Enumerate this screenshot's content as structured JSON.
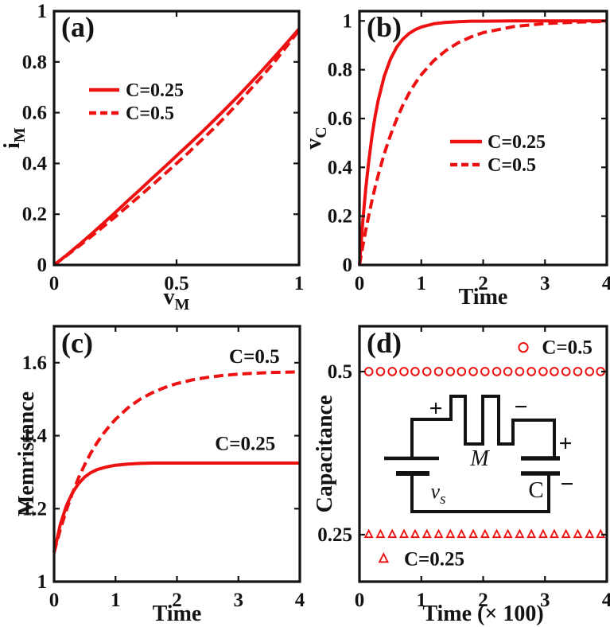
{
  "figure": {
    "background": "#ffffff",
    "curve_color": "#ee1111",
    "ink_color": "#131313"
  },
  "chart_data": [
    {
      "id": "a",
      "type": "line",
      "panel_label": "(a)",
      "xlabel": {
        "text": "v",
        "sub": "M"
      },
      "ylabel": {
        "text": "i",
        "sub": "M"
      },
      "xlim": [
        0,
        1
      ],
      "ylim": [
        0,
        1
      ],
      "grid": false,
      "xticks": [
        {
          "v": 0,
          "label": "0"
        },
        {
          "v": 0.5,
          "label": "0.5"
        },
        {
          "v": 1,
          "label": "1"
        }
      ],
      "yticks": [
        {
          "v": 0,
          "label": "0"
        },
        {
          "v": 0.2,
          "label": "0.2"
        },
        {
          "v": 0.4,
          "label": "0.4"
        },
        {
          "v": 0.6,
          "label": "0.6"
        },
        {
          "v": 0.8,
          "label": "0.8"
        },
        {
          "v": 1,
          "label": "1"
        }
      ],
      "legend": {
        "position": "upper-left-inside",
        "items": [
          {
            "label": "C=0.25",
            "style": "solid"
          },
          {
            "label": "C=0.5",
            "style": "dashed"
          }
        ]
      },
      "series": [
        {
          "name": "C=0.25",
          "style": "solid",
          "x": [
            0,
            0.05,
            0.1,
            0.15,
            0.2,
            0.25,
            0.3,
            0.35,
            0.4,
            0.45,
            0.5,
            0.55,
            0.6,
            0.65,
            0.7,
            0.75,
            0.8,
            0.85,
            0.9,
            0.95,
            1
          ],
          "y": [
            0,
            0.038,
            0.078,
            0.12,
            0.163,
            0.207,
            0.252,
            0.296,
            0.341,
            0.385,
            0.43,
            0.475,
            0.52,
            0.567,
            0.615,
            0.664,
            0.715,
            0.767,
            0.82,
            0.875,
            0.93
          ]
        },
        {
          "name": "C=0.5",
          "style": "dashed",
          "x": [
            0,
            0.05,
            0.1,
            0.15,
            0.2,
            0.25,
            0.3,
            0.35,
            0.4,
            0.45,
            0.5,
            0.55,
            0.6,
            0.65,
            0.7,
            0.75,
            0.8,
            0.85,
            0.9,
            0.95,
            1
          ],
          "y": [
            0,
            0.036,
            0.073,
            0.111,
            0.15,
            0.19,
            0.231,
            0.272,
            0.314,
            0.357,
            0.4,
            0.444,
            0.49,
            0.536,
            0.585,
            0.636,
            0.69,
            0.744,
            0.8,
            0.862,
            0.925
          ]
        }
      ]
    },
    {
      "id": "b",
      "type": "line",
      "panel_label": "(b)",
      "xlabel": {
        "text": "Time"
      },
      "ylabel": {
        "text": "v",
        "sub": "C"
      },
      "xlim": [
        0,
        4
      ],
      "ylim": [
        0,
        1.04
      ],
      "grid": false,
      "xticks": [
        {
          "v": 0,
          "label": "0"
        },
        {
          "v": 1,
          "label": "1"
        },
        {
          "v": 2,
          "label": "2"
        },
        {
          "v": 3,
          "label": "3"
        },
        {
          "v": 4,
          "label": "4"
        }
      ],
      "yticks": [
        {
          "v": 0,
          "label": "0"
        },
        {
          "v": 0.2,
          "label": "0.2"
        },
        {
          "v": 0.4,
          "label": "0.4"
        },
        {
          "v": 0.6,
          "label": "0.6"
        },
        {
          "v": 0.8,
          "label": "0.8"
        },
        {
          "v": 1,
          "label": "1"
        }
      ],
      "legend": {
        "position": "middle-right-inside",
        "items": [
          {
            "label": "C=0.25",
            "style": "solid"
          },
          {
            "label": "C=0.5",
            "style": "dashed"
          }
        ]
      },
      "series": [
        {
          "name": "C=0.25",
          "style": "solid",
          "x": [
            0,
            0.05,
            0.1,
            0.15,
            0.2,
            0.25,
            0.3,
            0.4,
            0.5,
            0.6,
            0.7,
            0.8,
            0.9,
            1,
            1.2,
            1.4,
            1.6,
            1.8,
            2,
            2.5,
            3,
            3.5,
            4
          ],
          "y": [
            0,
            0.169,
            0.31,
            0.426,
            0.523,
            0.604,
            0.671,
            0.773,
            0.843,
            0.892,
            0.925,
            0.948,
            0.964,
            0.975,
            0.988,
            0.994,
            0.997,
            0.999,
            0.999,
            1,
            1,
            1,
            1
          ]
        },
        {
          "name": "C=0.5",
          "style": "dashed",
          "x": [
            0,
            0.05,
            0.1,
            0.15,
            0.2,
            0.25,
            0.3,
            0.4,
            0.5,
            0.6,
            0.7,
            0.8,
            0.9,
            1,
            1.2,
            1.4,
            1.6,
            1.8,
            2,
            2.5,
            3,
            3.5,
            4
          ],
          "y": [
            0,
            0.073,
            0.141,
            0.203,
            0.261,
            0.315,
            0.365,
            0.455,
            0.531,
            0.597,
            0.654,
            0.703,
            0.744,
            0.78,
            0.837,
            0.879,
            0.911,
            0.934,
            0.952,
            0.977,
            0.989,
            0.995,
            0.998
          ]
        }
      ]
    },
    {
      "id": "c",
      "type": "line",
      "panel_label": "(c)",
      "xlabel": {
        "text": "Time"
      },
      "ylabel": {
        "text": "Memristance"
      },
      "xlim": [
        0,
        4
      ],
      "ylim": [
        1,
        1.7
      ],
      "grid": false,
      "xticks": [
        {
          "v": 0,
          "label": "0"
        },
        {
          "v": 1,
          "label": "1"
        },
        {
          "v": 2,
          "label": "2"
        },
        {
          "v": 3,
          "label": "3"
        },
        {
          "v": 4,
          "label": "4"
        }
      ],
      "yticks": [
        {
          "v": 1,
          "label": "1"
        },
        {
          "v": 1.2,
          "label": "1.2"
        },
        {
          "v": 1.4,
          "label": "1.4"
        },
        {
          "v": 1.6,
          "label": "1.6"
        }
      ],
      "annotations": [
        {
          "text": "C=0.5",
          "x": 3.26,
          "y": 1.617
        },
        {
          "text": "C=0.25",
          "x": 3.11,
          "y": 1.378
        }
      ],
      "series": [
        {
          "name": "C=0.25",
          "style": "solid",
          "x": [
            0,
            0.1,
            0.2,
            0.3,
            0.4,
            0.5,
            0.6,
            0.7,
            0.8,
            0.9,
            1,
            1.2,
            1.4,
            1.6,
            1.8,
            2,
            2.25,
            2.5,
            2.75,
            3,
            3.5,
            4
          ],
          "y": [
            1.08,
            1.156,
            1.208,
            1.244,
            1.269,
            1.287,
            1.299,
            1.307,
            1.312,
            1.316,
            1.319,
            1.322,
            1.324,
            1.325,
            1.325,
            1.325,
            1.325,
            1.325,
            1.325,
            1.325,
            1.325,
            1.325
          ]
        },
        {
          "name": "C=0.5",
          "style": "dashed",
          "x": [
            0,
            0.1,
            0.2,
            0.3,
            0.4,
            0.5,
            0.6,
            0.7,
            0.8,
            0.9,
            1,
            1.2,
            1.4,
            1.6,
            1.8,
            2,
            2.25,
            2.5,
            2.75,
            3,
            3.5,
            4
          ],
          "y": [
            1.08,
            1.142,
            1.196,
            1.243,
            1.285,
            1.321,
            1.353,
            1.381,
            1.405,
            1.426,
            1.445,
            1.476,
            1.5,
            1.518,
            1.532,
            1.543,
            1.553,
            1.56,
            1.565,
            1.569,
            1.573,
            1.575
          ]
        }
      ]
    },
    {
      "id": "d",
      "type": "scatter",
      "panel_label": "(d)",
      "xlabel": {
        "text": "Time (× 100)"
      },
      "ylabel": {
        "text": "Capacitance"
      },
      "xlim": [
        0,
        4
      ],
      "ylim": [
        0.178,
        0.5695
      ],
      "grid": false,
      "xticks": [
        {
          "v": 0,
          "label": "0"
        },
        {
          "v": 1,
          "label": "1"
        },
        {
          "v": 2,
          "label": "2"
        },
        {
          "v": 3,
          "label": "3"
        },
        {
          "v": 4,
          "label": "4"
        }
      ],
      "yticks": [
        {
          "v": 0.25,
          "label": "0.25"
        },
        {
          "v": 0.5,
          "label": "0.5"
        }
      ],
      "annotations": [
        {
          "text": "C=0.5",
          "marker": "circle",
          "x": 2.65,
          "y": 0.537,
          "text_x": 2.95
        },
        {
          "text": "C=0.25",
          "marker": "triangle",
          "x": 0.39,
          "y": 0.213,
          "text_x": 0.72
        }
      ],
      "series": [
        {
          "name": "C=0.5",
          "marker": "circle",
          "y": 0.5,
          "x": [
            0.15,
            0.34,
            0.53,
            0.72,
            0.9,
            1.09,
            1.28,
            1.47,
            1.65,
            1.84,
            2.03,
            2.22,
            2.4,
            2.59,
            2.78,
            2.97,
            3.15,
            3.34,
            3.53,
            3.72,
            3.9
          ]
        },
        {
          "name": "C=0.25",
          "marker": "triangle",
          "y": 0.25,
          "x": [
            0.15,
            0.34,
            0.53,
            0.72,
            0.9,
            1.09,
            1.28,
            1.47,
            1.65,
            1.84,
            2.03,
            2.22,
            2.4,
            2.59,
            2.78,
            2.97,
            3.15,
            3.34,
            3.53,
            3.72,
            3.9
          ]
        }
      ],
      "inset": {
        "memristor_plus": "+",
        "memristor_minus": "−",
        "memristor_label": "M",
        "source_label": {
          "text": "v",
          "sub": "s"
        },
        "capacitor_label": "C",
        "capacitor_plus": "+",
        "capacitor_minus": "−"
      }
    }
  ]
}
